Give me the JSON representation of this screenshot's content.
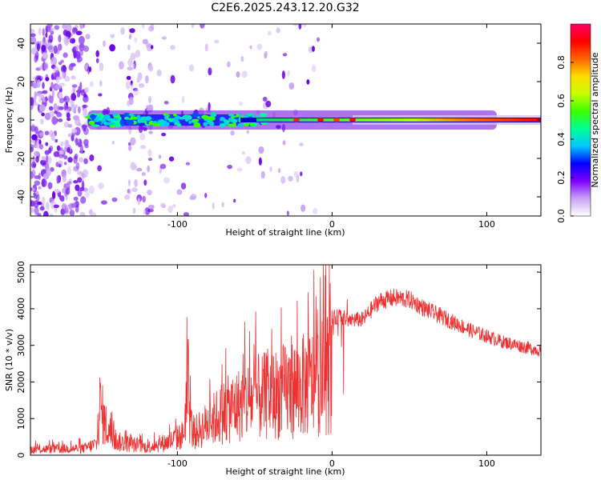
{
  "title": "C2E6.2025.243.12.20.G32",
  "chart_data": [
    {
      "type": "heatmap",
      "name": "spectrogram",
      "xlabel": "Height of straight line (km)",
      "ylabel": "Frequency (Hz)",
      "xlim": [
        -195,
        135
      ],
      "ylim": [
        -50,
        50
      ],
      "xticks": [
        -100,
        0,
        100
      ],
      "xtick_labels": [
        "-100",
        "0",
        "100"
      ],
      "yticks": [
        -40,
        -20,
        0,
        20,
        40
      ],
      "ytick_labels": [
        "-40",
        "-20",
        "0",
        "20",
        "40"
      ],
      "colorbar": {
        "label": "Normalized spectral amplitude",
        "range": [
          0,
          1
        ],
        "ticks": [
          0.0,
          0.2,
          0.4,
          0.6,
          0.8
        ],
        "tick_labels": [
          "0.0",
          "0.2",
          "0.4",
          "0.6",
          "0.8"
        ],
        "colors": [
          "#ffffff",
          "#c9a4f5",
          "#7f00ff",
          "#0000ff",
          "#00c8ff",
          "#00ff96",
          "#3cff00",
          "#c8ff00",
          "#ffdc00",
          "#ff6400",
          "#ff0000",
          "#ff0064"
        ]
      },
      "signal_band": {
        "center_hz": 0,
        "onset_km": -158,
        "strong_from_km": 0
      }
    },
    {
      "type": "line",
      "name": "snr",
      "xlabel": "Height of straight line (km)",
      "ylabel": "SNR (10 * v/v)",
      "xlim": [
        -195,
        135
      ],
      "ylim": [
        0,
        5200
      ],
      "xticks": [
        -100,
        0,
        100
      ],
      "xtick_labels": [
        "-100",
        "0",
        "100"
      ],
      "yticks": [
        0,
        1000,
        2000,
        3000,
        4000,
        5000
      ],
      "ytick_labels": [
        "0",
        "1000",
        "2000",
        "3000",
        "4000",
        "5000"
      ],
      "line_color": "#ee3030",
      "envelope": {
        "x": [
          -195,
          -160,
          -152,
          -150,
          -147,
          -140,
          -120,
          -105,
          -96,
          -94,
          -90,
          -80,
          -70,
          -60,
          -50,
          -40,
          -30,
          -20,
          -10,
          -5,
          0,
          5,
          10,
          20,
          30,
          40,
          50,
          60,
          70,
          80,
          90,
          100,
          110,
          120,
          135
        ],
        "y": [
          250,
          300,
          500,
          2200,
          1400,
          600,
          350,
          600,
          900,
          2600,
          900,
          1400,
          1900,
          2200,
          2500,
          2600,
          2800,
          3000,
          3200,
          3500,
          3700,
          3800,
          3700,
          3700,
          4200,
          4300,
          4250,
          4000,
          3800,
          3600,
          3400,
          3250,
          3100,
          3000,
          2850
        ]
      }
    }
  ]
}
